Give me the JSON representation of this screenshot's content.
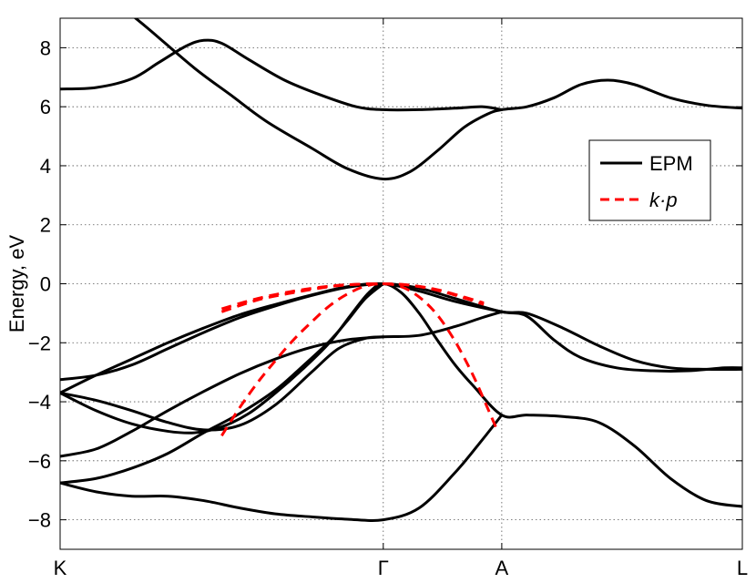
{
  "chart_data": {
    "type": "line",
    "title": "",
    "xlabel": "",
    "ylabel": "Energy, eV",
    "xlim": [
      0,
      3.8
    ],
    "ylim": [
      -9,
      9
    ],
    "grid": true,
    "grid_style": "dotted",
    "legend_position": "right",
    "x_ticks": [
      {
        "value": 0,
        "label": "K"
      },
      {
        "value": 1.8,
        "label": "Γ"
      },
      {
        "value": 2.46,
        "label": "A"
      },
      {
        "value": 3.8,
        "label": "L"
      }
    ],
    "y_ticks": [
      -8,
      -6,
      -4,
      -2,
      0,
      2,
      4,
      6,
      8
    ],
    "legend": [
      {
        "label": "EPM",
        "color": "#000000",
        "dash": "solid"
      },
      {
        "label": "k·p",
        "color": "#ff0000",
        "dash": "dashed"
      }
    ],
    "series": [
      {
        "group": "EPM",
        "color": "#000000",
        "dash": "solid",
        "points": [
          [
            0.38,
            9.2
          ],
          [
            0.5,
            8.6
          ],
          [
            0.75,
            7.3
          ],
          [
            0.95,
            6.4
          ],
          [
            1.15,
            5.5
          ],
          [
            1.4,
            4.6
          ],
          [
            1.6,
            3.9
          ],
          [
            1.8,
            3.55
          ],
          [
            1.95,
            3.8
          ],
          [
            2.1,
            4.5
          ],
          [
            2.25,
            5.3
          ],
          [
            2.38,
            5.75
          ],
          [
            2.46,
            5.9
          ],
          [
            2.6,
            6.0
          ],
          [
            2.75,
            6.3
          ],
          [
            2.9,
            6.75
          ],
          [
            3.05,
            6.9
          ],
          [
            3.2,
            6.75
          ],
          [
            3.4,
            6.3
          ],
          [
            3.6,
            6.05
          ],
          [
            3.8,
            5.95
          ]
        ]
      },
      {
        "group": "EPM",
        "color": "#000000",
        "dash": "solid",
        "points": [
          [
            0,
            6.6
          ],
          [
            0.2,
            6.65
          ],
          [
            0.4,
            6.95
          ],
          [
            0.55,
            7.5
          ],
          [
            0.7,
            8.05
          ],
          [
            0.8,
            8.25
          ],
          [
            0.9,
            8.15
          ],
          [
            1.05,
            7.6
          ],
          [
            1.25,
            6.9
          ],
          [
            1.45,
            6.4
          ],
          [
            1.65,
            6.0
          ],
          [
            1.8,
            5.9
          ],
          [
            2.0,
            5.9
          ],
          [
            2.2,
            5.95
          ],
          [
            2.35,
            6.0
          ],
          [
            2.46,
            5.9
          ]
        ]
      },
      {
        "group": "EPM",
        "color": "#000000",
        "dash": "solid",
        "points": [
          [
            0,
            -3.25
          ],
          [
            0.2,
            -3.1
          ],
          [
            0.4,
            -2.75
          ],
          [
            0.6,
            -2.2
          ],
          [
            0.8,
            -1.65
          ],
          [
            1.0,
            -1.15
          ],
          [
            1.2,
            -0.75
          ],
          [
            1.4,
            -0.4
          ],
          [
            1.6,
            -0.12
          ],
          [
            1.8,
            0
          ],
          [
            2.0,
            -0.15
          ],
          [
            2.2,
            -0.5
          ],
          [
            2.46,
            -0.95
          ],
          [
            2.6,
            -1.0
          ],
          [
            2.8,
            -1.5
          ],
          [
            3.0,
            -2.1
          ],
          [
            3.2,
            -2.6
          ],
          [
            3.4,
            -2.85
          ],
          [
            3.6,
            -2.9
          ],
          [
            3.8,
            -2.9
          ]
        ]
      },
      {
        "group": "EPM",
        "color": "#000000",
        "dash": "solid",
        "points": [
          [
            0,
            -3.7
          ],
          [
            0.2,
            -3.1
          ],
          [
            0.4,
            -2.55
          ],
          [
            0.6,
            -2.0
          ],
          [
            0.8,
            -1.5
          ],
          [
            1.0,
            -1.05
          ],
          [
            1.2,
            -0.7
          ],
          [
            1.4,
            -0.38
          ],
          [
            1.6,
            -0.1
          ],
          [
            1.8,
            0
          ],
          [
            2.0,
            -0.25
          ],
          [
            2.2,
            -0.6
          ],
          [
            2.46,
            -0.95
          ],
          [
            2.6,
            -1.1
          ],
          [
            2.75,
            -1.9
          ],
          [
            2.9,
            -2.5
          ],
          [
            3.1,
            -2.85
          ],
          [
            3.3,
            -2.95
          ],
          [
            3.5,
            -2.95
          ],
          [
            3.7,
            -2.85
          ],
          [
            3.8,
            -2.85
          ]
        ]
      },
      {
        "group": "EPM",
        "color": "#000000",
        "dash": "solid",
        "points": [
          [
            0,
            -3.7
          ],
          [
            0.2,
            -4.3
          ],
          [
            0.4,
            -4.75
          ],
          [
            0.6,
            -5.0
          ],
          [
            0.75,
            -5.05
          ],
          [
            0.9,
            -4.85
          ],
          [
            1.05,
            -4.4
          ],
          [
            1.2,
            -3.7
          ],
          [
            1.35,
            -2.9
          ],
          [
            1.5,
            -2.0
          ],
          [
            1.62,
            -1.05
          ],
          [
            1.72,
            -0.3
          ],
          [
            1.8,
            0
          ],
          [
            1.9,
            -0.3
          ],
          [
            2.0,
            -1.0
          ],
          [
            2.1,
            -1.9
          ],
          [
            2.2,
            -2.75
          ],
          [
            2.3,
            -3.45
          ],
          [
            2.46,
            -4.45
          ],
          [
            2.6,
            -4.45
          ],
          [
            2.8,
            -4.5
          ],
          [
            3.0,
            -4.7
          ],
          [
            3.2,
            -5.5
          ],
          [
            3.4,
            -6.6
          ],
          [
            3.6,
            -7.35
          ],
          [
            3.8,
            -7.55
          ]
        ]
      },
      {
        "group": "EPM",
        "color": "#000000",
        "dash": "solid",
        "points": [
          [
            0,
            -3.7
          ],
          [
            0.2,
            -3.95
          ],
          [
            0.4,
            -4.3
          ],
          [
            0.6,
            -4.7
          ],
          [
            0.8,
            -4.95
          ],
          [
            1.0,
            -4.8
          ],
          [
            1.2,
            -4.1
          ],
          [
            1.4,
            -3.0
          ],
          [
            1.55,
            -2.2
          ],
          [
            1.7,
            -1.85
          ],
          [
            1.8,
            -1.8
          ],
          [
            2.0,
            -1.75
          ],
          [
            2.2,
            -1.45
          ],
          [
            2.35,
            -1.15
          ],
          [
            2.46,
            -0.95
          ]
        ]
      },
      {
        "group": "EPM",
        "color": "#000000",
        "dash": "solid",
        "points": [
          [
            0,
            -5.85
          ],
          [
            0.2,
            -5.6
          ],
          [
            0.4,
            -5.0
          ],
          [
            0.6,
            -4.3
          ],
          [
            0.8,
            -3.65
          ],
          [
            1.0,
            -3.05
          ],
          [
            1.2,
            -2.55
          ],
          [
            1.4,
            -2.15
          ],
          [
            1.6,
            -1.9
          ],
          [
            1.8,
            -1.8
          ]
        ]
      },
      {
        "group": "EPM",
        "color": "#000000",
        "dash": "solid",
        "points": [
          [
            0,
            -6.75
          ],
          [
            0.2,
            -6.6
          ],
          [
            0.4,
            -6.25
          ],
          [
            0.6,
            -5.75
          ],
          [
            0.8,
            -5.05
          ],
          [
            1.0,
            -4.4
          ],
          [
            1.2,
            -3.6
          ],
          [
            1.35,
            -2.8
          ],
          [
            1.5,
            -1.95
          ],
          [
            1.6,
            -1.25
          ],
          [
            1.7,
            -0.5
          ],
          [
            1.8,
            0
          ]
        ]
      },
      {
        "group": "EPM",
        "color": "#000000",
        "dash": "solid",
        "points": [
          [
            0,
            -6.75
          ],
          [
            0.2,
            -7.05
          ],
          [
            0.4,
            -7.2
          ],
          [
            0.6,
            -7.2
          ],
          [
            0.8,
            -7.35
          ],
          [
            1.0,
            -7.6
          ],
          [
            1.2,
            -7.8
          ],
          [
            1.4,
            -7.9
          ],
          [
            1.6,
            -7.98
          ],
          [
            1.8,
            -8.0
          ],
          [
            2.0,
            -7.6
          ],
          [
            2.2,
            -6.4
          ],
          [
            2.35,
            -5.3
          ],
          [
            2.46,
            -4.45
          ]
        ]
      },
      {
        "group": "k·p",
        "color": "#ff0000",
        "dash": "dashed",
        "points": [
          [
            0.9,
            -0.95
          ],
          [
            1.1,
            -0.55
          ],
          [
            1.3,
            -0.3
          ],
          [
            1.5,
            -0.1
          ],
          [
            1.65,
            -0.02
          ],
          [
            1.8,
            0
          ],
          [
            1.95,
            -0.05
          ],
          [
            2.1,
            -0.22
          ],
          [
            2.25,
            -0.48
          ],
          [
            2.36,
            -0.7
          ]
        ]
      },
      {
        "group": "k·p",
        "color": "#ff0000",
        "dash": "dashed",
        "points": [
          [
            0.9,
            -0.85
          ],
          [
            1.1,
            -0.5
          ],
          [
            1.3,
            -0.25
          ],
          [
            1.5,
            -0.08
          ],
          [
            1.65,
            -0.02
          ],
          [
            1.8,
            0
          ],
          [
            1.95,
            -0.05
          ],
          [
            2.1,
            -0.2
          ],
          [
            2.25,
            -0.45
          ],
          [
            2.36,
            -0.65
          ]
        ]
      },
      {
        "group": "k·p",
        "color": "#ff0000",
        "dash": "dashed",
        "points": [
          [
            0.9,
            -5.15
          ],
          [
            1.0,
            -4.2
          ],
          [
            1.1,
            -3.35
          ],
          [
            1.2,
            -2.6
          ],
          [
            1.3,
            -1.9
          ],
          [
            1.4,
            -1.3
          ],
          [
            1.5,
            -0.75
          ],
          [
            1.6,
            -0.35
          ],
          [
            1.7,
            -0.08
          ],
          [
            1.8,
            0
          ],
          [
            1.9,
            -0.1
          ],
          [
            2.0,
            -0.45
          ],
          [
            2.1,
            -1.05
          ],
          [
            2.2,
            -1.95
          ],
          [
            2.3,
            -3.1
          ],
          [
            2.38,
            -4.2
          ],
          [
            2.43,
            -4.9
          ]
        ]
      }
    ]
  }
}
